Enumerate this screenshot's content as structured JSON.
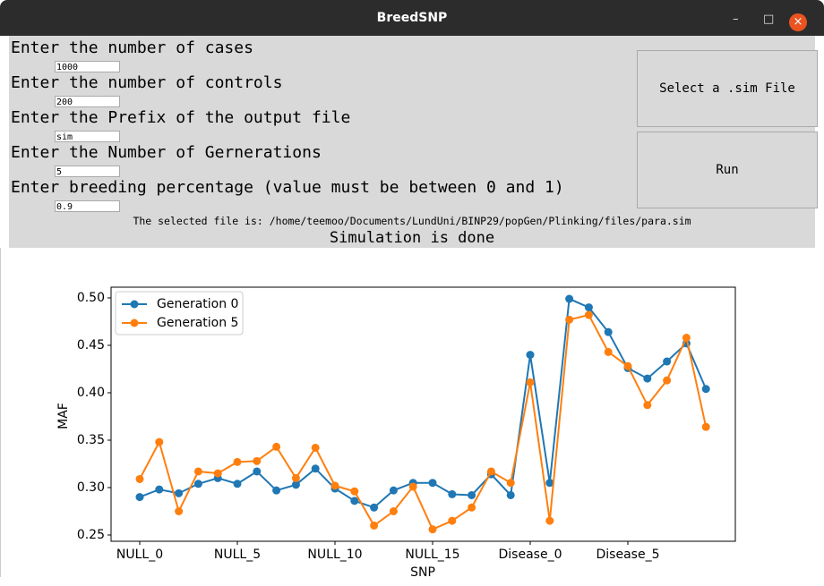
{
  "window": {
    "title": "BreedSNP"
  },
  "form": {
    "fields": [
      {
        "label": "Enter the number of cases",
        "value": "1000"
      },
      {
        "label": "Enter the number of controls",
        "value": "200"
      },
      {
        "label": "Enter the Prefix of the output file",
        "value": "sim"
      },
      {
        "label": "Enter the Number of Gernerations",
        "value": "5"
      },
      {
        "label": "Enter breeding percentage (value must be between 0 and 1)",
        "value": "0.9"
      }
    ],
    "buttons": [
      "Select a .sim File",
      "Run"
    ],
    "selected_file": "The selected file is: /home/teemoo/Documents/LundUni/BINP29/popGen/Plinking/files/para.sim",
    "status": "Simulation is done"
  },
  "chart_data": {
    "type": "line",
    "x_label": "SNP",
    "y_label": "MAF",
    "categories": [
      "NULL_0",
      null,
      null,
      null,
      null,
      "NULL_5",
      null,
      null,
      null,
      null,
      "NULL_10",
      null,
      null,
      null,
      null,
      "NULL_15",
      null,
      null,
      null,
      null,
      "Disease_0",
      null,
      null,
      null,
      null,
      "Disease_5",
      null,
      null,
      null,
      null
    ],
    "series": [
      {
        "name": "Generation 0",
        "color": "#1f77b4",
        "values": [
          0.29,
          0.298,
          0.294,
          0.304,
          0.31,
          0.304,
          0.317,
          0.297,
          0.303,
          0.32,
          0.299,
          0.286,
          0.279,
          0.297,
          0.305,
          0.305,
          0.293,
          0.292,
          0.314,
          0.292,
          0.44,
          0.305,
          0.499,
          0.49,
          0.464,
          0.426,
          0.415,
          0.433,
          0.452,
          0.404
        ]
      },
      {
        "name": "Generation 5",
        "color": "#ff7f0e",
        "values": [
          0.309,
          0.348,
          0.275,
          0.317,
          0.315,
          0.327,
          0.328,
          0.343,
          0.31,
          0.342,
          0.302,
          0.296,
          0.26,
          0.275,
          0.301,
          0.256,
          0.265,
          0.279,
          0.317,
          0.305,
          0.411,
          0.265,
          0.477,
          0.482,
          0.443,
          0.428,
          0.387,
          0.413,
          0.458,
          0.364
        ]
      }
    ],
    "ylim": [
      0.2434,
      0.5113
    ],
    "yticks": [
      0.25,
      {
        "value": 0.3,
        "label": "0.30"
      },
      0.35,
      {
        "value": 0.4,
        "label": "0.40"
      },
      0.45,
      {
        "value": 0.5,
        "label": "0.50"
      }
    ],
    "legend": "upper left"
  }
}
